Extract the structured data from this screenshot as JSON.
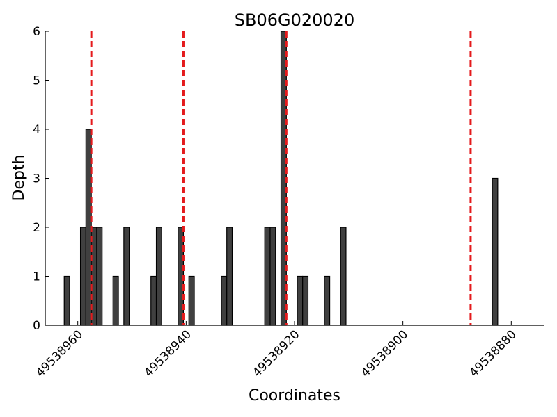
{
  "chart_data": {
    "type": "bar",
    "title": "SB06G020020",
    "xlabel": "Coordinates",
    "ylabel": "Depth",
    "xlim": [
      49538966,
      49538874
    ],
    "ylim": [
      0,
      6
    ],
    "x_inverted": true,
    "xticks": [
      49538960,
      49538940,
      49538920,
      49538900,
      49538880
    ],
    "yticks": [
      0,
      1,
      2,
      3,
      4,
      5,
      6
    ],
    "grid": false,
    "bar_color": "#404040",
    "marker_color": "#e41a1c",
    "bars": [
      {
        "x": 49538962,
        "y": 1
      },
      {
        "x": 49538959,
        "y": 2
      },
      {
        "x": 49538958,
        "y": 4
      },
      {
        "x": 49538957,
        "y": 2
      },
      {
        "x": 49538956,
        "y": 2
      },
      {
        "x": 49538953,
        "y": 1
      },
      {
        "x": 49538951,
        "y": 2
      },
      {
        "x": 49538946,
        "y": 1
      },
      {
        "x": 49538945,
        "y": 2
      },
      {
        "x": 49538941,
        "y": 2
      },
      {
        "x": 49538939,
        "y": 1
      },
      {
        "x": 49538933,
        "y": 1
      },
      {
        "x": 49538932,
        "y": 2
      },
      {
        "x": 49538925,
        "y": 2
      },
      {
        "x": 49538924,
        "y": 2
      },
      {
        "x": 49538922,
        "y": 6
      },
      {
        "x": 49538919,
        "y": 1
      },
      {
        "x": 49538918,
        "y": 1
      },
      {
        "x": 49538914,
        "y": 1
      },
      {
        "x": 49538911,
        "y": 2
      },
      {
        "x": 49538883,
        "y": 3
      }
    ],
    "markers": [
      49538957.5,
      49538940.5,
      49538921.5,
      49538887.5
    ]
  }
}
